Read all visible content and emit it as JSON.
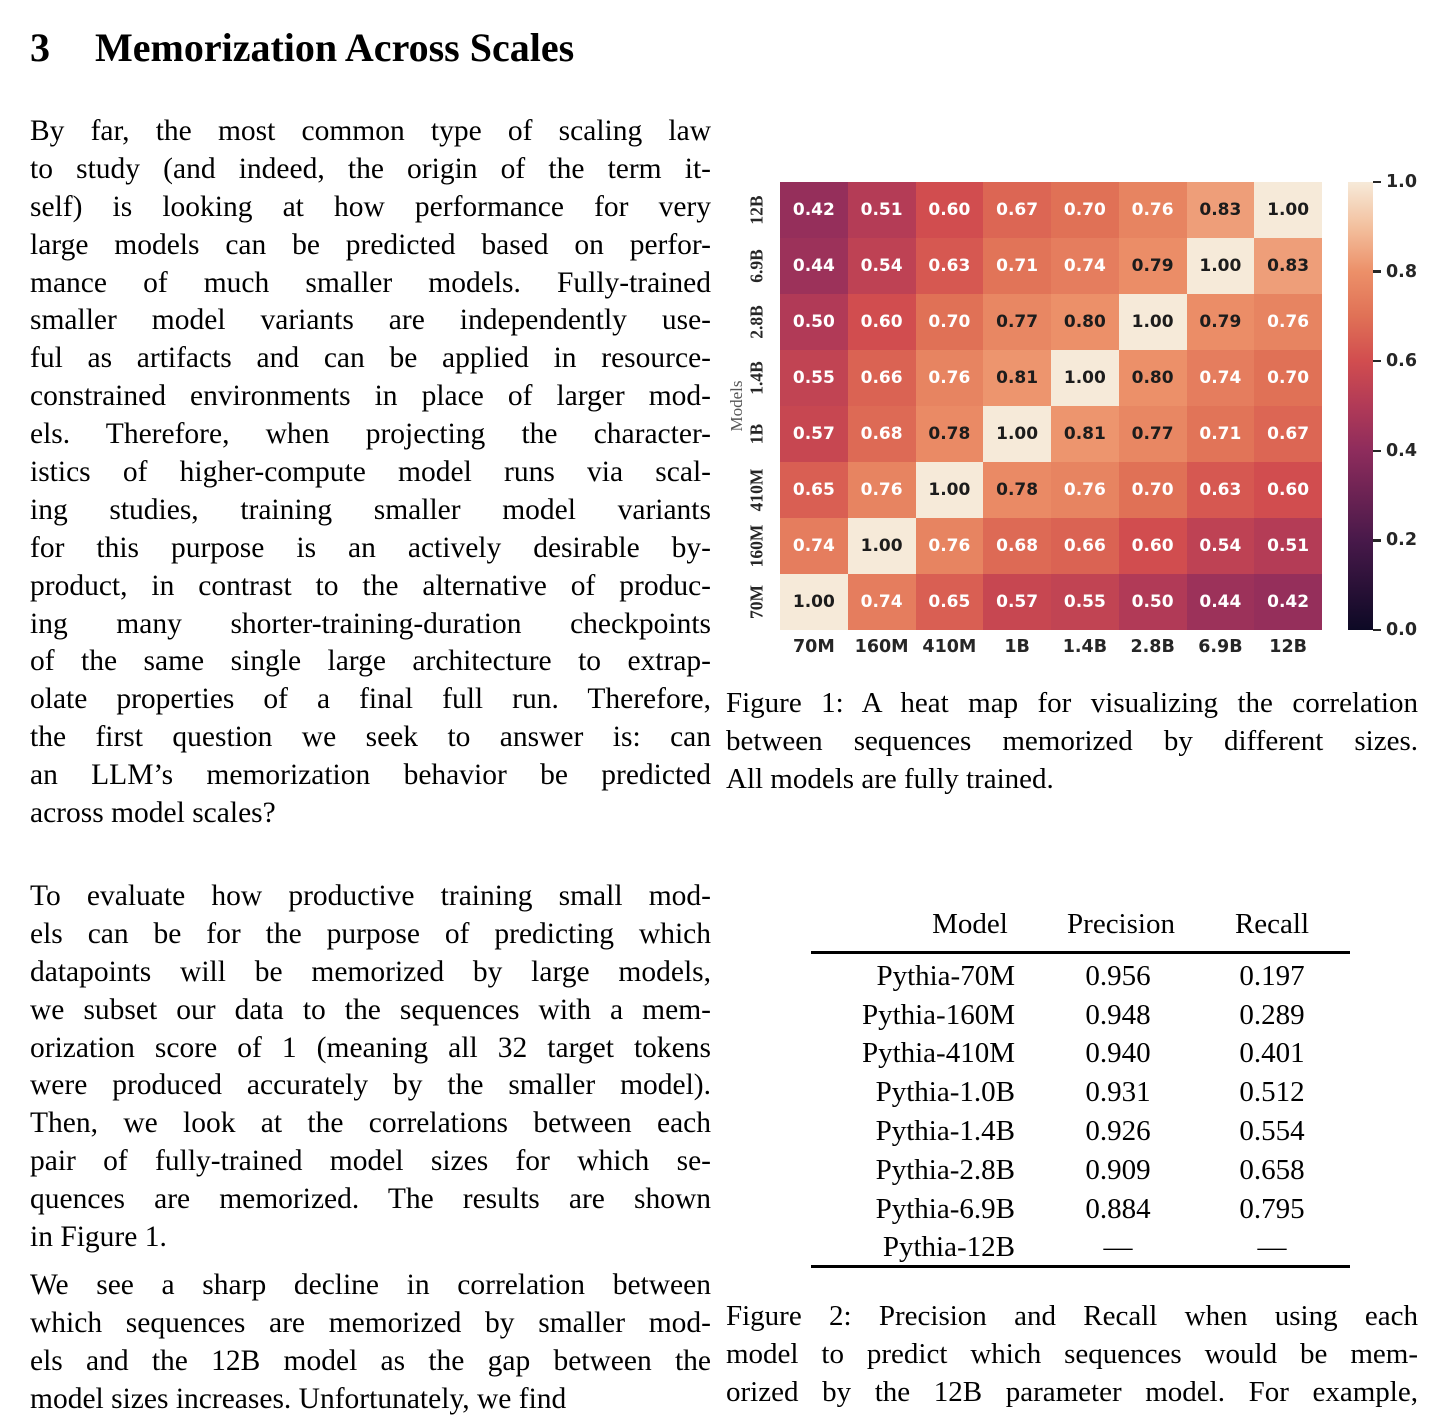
{
  "section": {
    "number": "3",
    "title": "Memorization Across Scales"
  },
  "left_column": {
    "paragraphs": [
      {
        "lines": [
          "By far, the most common type of scaling law",
          "to study (and indeed, the origin of the term it-",
          "self) is looking at how performance for very",
          "large models can be predicted based on perfor-",
          "mance of much smaller models. Fully-trained",
          "smaller model variants are independently use-",
          "ful as artifacts and can be applied in resource-",
          "constrained environments in place of larger mod-",
          "els. Therefore, when projecting the character-",
          "istics of higher-compute model runs via scal-",
          "ing studies, training smaller model variants",
          "for this purpose is an actively desirable by-",
          "product, in contrast to the alternative of produc-",
          "ing many shorter-training-duration checkpoints",
          "of the same single large architecture to extrap-",
          "olate properties of a final full run. Therefore,",
          "the first question we seek to answer is: can",
          "an LLM’s memorization behavior be predicted",
          "across model scales?"
        ]
      },
      {
        "lines": [
          "To evaluate how productive training small mod-",
          "els can be for the purpose of predicting which",
          "datapoints will be memorized by large models,",
          "we subset our data to the sequences with a mem-",
          "orization score of 1 (meaning all 32 target tokens",
          "were produced accurately by the smaller model).",
          "Then, we look at the correlations between each",
          "pair of fully-trained model sizes for which se-",
          "quences are memorized. The results are shown",
          "in Figure 1."
        ]
      },
      {
        "lines": [
          "We see a sharp decline in correlation between",
          "which sequences are memorized by smaller mod-",
          "els and the 12B model as the gap between the",
          "model sizes increases. Unfortunately, we find"
        ]
      }
    ]
  },
  "chart_data": {
    "type": "heatmap",
    "ylabel": "Models",
    "row_labels": [
      "12B",
      "6.9B",
      "2.8B",
      "1.4B",
      "1B",
      "410M",
      "160M",
      "70M"
    ],
    "col_labels": [
      "70M",
      "160M",
      "410M",
      "1B",
      "1.4B",
      "2.8B",
      "6.9B",
      "12B"
    ],
    "values": [
      [
        0.42,
        0.51,
        0.6,
        0.67,
        0.7,
        0.76,
        0.83,
        1.0
      ],
      [
        0.44,
        0.54,
        0.63,
        0.71,
        0.74,
        0.79,
        1.0,
        0.83
      ],
      [
        0.5,
        0.6,
        0.7,
        0.77,
        0.8,
        1.0,
        0.79,
        0.76
      ],
      [
        0.55,
        0.66,
        0.76,
        0.81,
        1.0,
        0.8,
        0.74,
        0.7
      ],
      [
        0.57,
        0.68,
        0.78,
        1.0,
        0.81,
        0.77,
        0.71,
        0.67
      ],
      [
        0.65,
        0.76,
        1.0,
        0.78,
        0.76,
        0.7,
        0.63,
        0.6
      ],
      [
        0.74,
        1.0,
        0.76,
        0.68,
        0.66,
        0.6,
        0.54,
        0.51
      ],
      [
        1.0,
        0.74,
        0.65,
        0.57,
        0.55,
        0.5,
        0.44,
        0.42
      ]
    ],
    "value_format_decimals": 2,
    "colorbar_ticks": [
      "1.0",
      "0.8",
      "0.6",
      "0.4",
      "0.2",
      "0.0"
    ],
    "colorbar_range": [
      0.0,
      1.0
    ],
    "colormap_stops": [
      [
        0.0,
        "#0d0925"
      ],
      [
        0.2,
        "#48194a"
      ],
      [
        0.4,
        "#8e2c5c"
      ],
      [
        0.5,
        "#b13a57"
      ],
      [
        0.6,
        "#d14d4f"
      ],
      [
        0.7,
        "#e07156"
      ],
      [
        0.8,
        "#ec9069"
      ],
      [
        0.9,
        "#f3c09e"
      ],
      [
        1.0,
        "#f6ead9"
      ]
    ],
    "dark_text_threshold": 0.77,
    "cell_text_dark": "#1c1c1c",
    "cell_text_light": "#ffffff"
  },
  "figure1": {
    "caption_lines": [
      "Figure 1: A heat map for visualizing the correlation",
      "between sequences memorized by different sizes.",
      "All models are fully trained."
    ]
  },
  "figure2": {
    "table": {
      "headers": [
        "Model",
        "Precision",
        "Recall"
      ],
      "rows": [
        [
          "Pythia-70M",
          "0.956",
          "0.197"
        ],
        [
          "Pythia-160M",
          "0.948",
          "0.289"
        ],
        [
          "Pythia-410M",
          "0.940",
          "0.401"
        ],
        [
          "Pythia-1.0B",
          "0.931",
          "0.512"
        ],
        [
          "Pythia-1.4B",
          "0.926",
          "0.554"
        ],
        [
          "Pythia-2.8B",
          "0.909",
          "0.658"
        ],
        [
          "Pythia-6.9B",
          "0.884",
          "0.795"
        ],
        [
          "Pythia-12B",
          "—",
          "—"
        ]
      ]
    },
    "caption_lines": [
      "Figure 2: Precision and Recall when using each",
      "model to predict which sequences would be mem-",
      "orized by the 12B parameter model. For example,",
      ""
    ]
  }
}
